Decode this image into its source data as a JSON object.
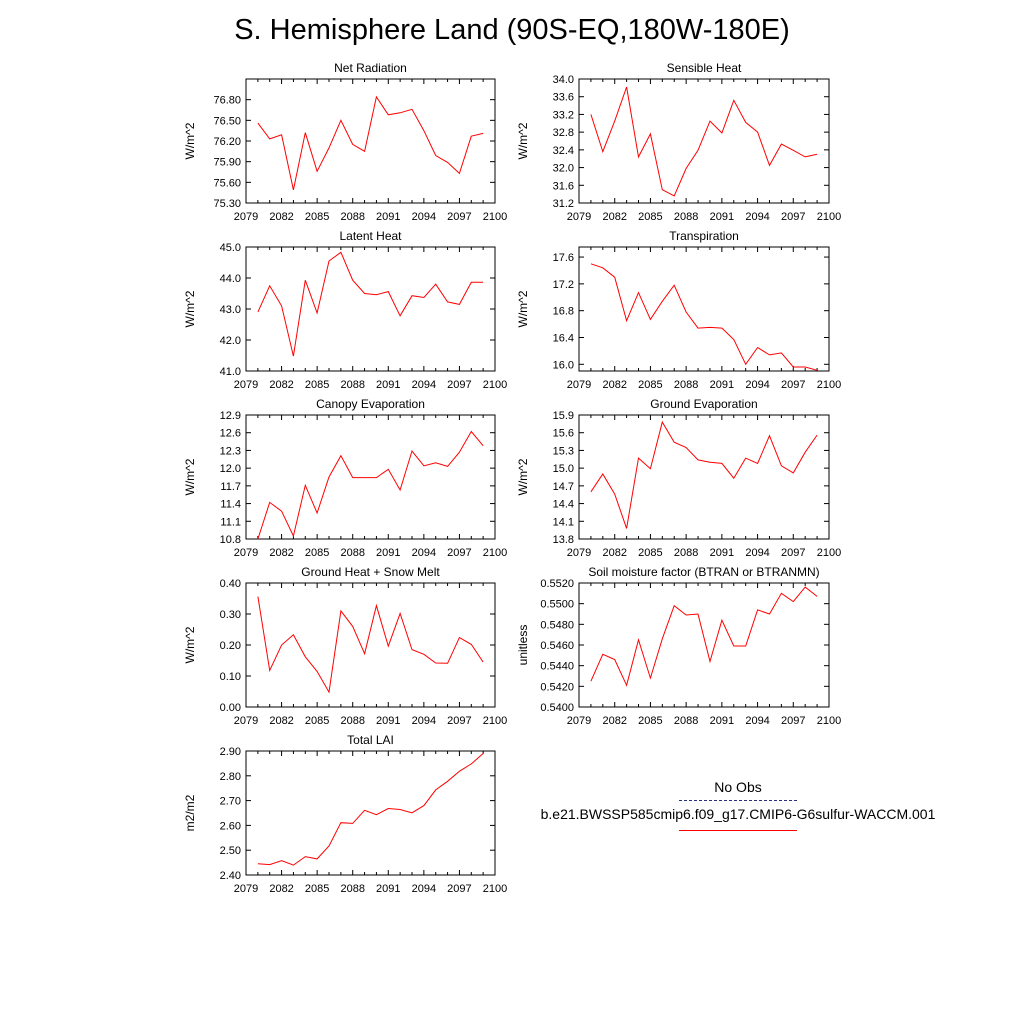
{
  "title": "S. Hemisphere Land (90S-EQ,180W-180E)",
  "legend": {
    "obs_label": "No Obs",
    "series_label": "b.e21.BWSSP585cmip6.f09_g17.CMIP6-G6sulfur-WACCM.001",
    "obs_color": "#2a2f7a",
    "series_color": "#ff0000"
  },
  "chart_data": [
    {
      "type": "line",
      "title": "Net Radiation",
      "ylabel": "W/m^2",
      "xlim": [
        2079,
        2100
      ],
      "xticks": [
        "2079",
        "2082",
        "2085",
        "2088",
        "2091",
        "2094",
        "2097",
        "2100"
      ],
      "ylim": [
        75.3,
        77.1
      ],
      "yticks": [
        "75.30",
        "75.60",
        "75.90",
        "76.20",
        "76.50",
        "76.80"
      ],
      "x": [
        2080,
        2081,
        2082,
        2083,
        2084,
        2085,
        2086,
        2087,
        2088,
        2089,
        2090,
        2091,
        2092,
        2093,
        2094,
        2095,
        2096,
        2097,
        2098,
        2099
      ],
      "series": [
        {
          "values": [
            76.46,
            76.23,
            76.29,
            75.49,
            76.32,
            75.76,
            76.1,
            76.5,
            76.15,
            76.05,
            76.84,
            76.58,
            76.61,
            76.66,
            76.35,
            75.99,
            75.89,
            75.73,
            76.27,
            76.31
          ]
        }
      ]
    },
    {
      "type": "line",
      "title": "Sensible Heat",
      "ylabel": "W/m^2",
      "xlim": [
        2079,
        2100
      ],
      "xticks": [
        "2079",
        "2082",
        "2085",
        "2088",
        "2091",
        "2094",
        "2097",
        "2100"
      ],
      "ylim": [
        31.2,
        34.0
      ],
      "yticks": [
        "31.2",
        "31.6",
        "32.0",
        "32.4",
        "32.8",
        "33.2",
        "33.6",
        "34.0"
      ],
      "x": [
        2080,
        2081,
        2082,
        2083,
        2084,
        2085,
        2086,
        2087,
        2088,
        2089,
        2090,
        2091,
        2092,
        2093,
        2094,
        2095,
        2096,
        2097,
        2098,
        2099
      ],
      "series": [
        {
          "values": [
            33.2,
            32.36,
            33.05,
            33.82,
            32.24,
            32.76,
            31.5,
            31.36,
            31.98,
            32.39,
            33.05,
            32.78,
            33.52,
            33.02,
            32.8,
            32.05,
            32.53,
            32.39,
            32.24,
            32.3
          ]
        }
      ]
    },
    {
      "type": "line",
      "title": "Latent Heat",
      "ylabel": "W/m^2",
      "xlim": [
        2079,
        2100
      ],
      "xticks": [
        "2079",
        "2082",
        "2085",
        "2088",
        "2091",
        "2094",
        "2097",
        "2100"
      ],
      "ylim": [
        41.0,
        45.0
      ],
      "yticks": [
        "41.0",
        "42.0",
        "43.0",
        "44.0",
        "45.0"
      ],
      "x": [
        2080,
        2081,
        2082,
        2083,
        2084,
        2085,
        2086,
        2087,
        2088,
        2089,
        2090,
        2091,
        2092,
        2093,
        2094,
        2095,
        2096,
        2097,
        2098,
        2099
      ],
      "series": [
        {
          "values": [
            42.9,
            43.75,
            43.1,
            41.48,
            43.93,
            42.87,
            44.55,
            44.83,
            43.93,
            43.5,
            43.46,
            43.56,
            42.78,
            43.43,
            43.37,
            43.8,
            43.23,
            43.15,
            43.86,
            43.86
          ]
        }
      ]
    },
    {
      "type": "line",
      "title": "Transpiration",
      "ylabel": "W/m^2",
      "xlim": [
        2079,
        2100
      ],
      "xticks": [
        "2079",
        "2082",
        "2085",
        "2088",
        "2091",
        "2094",
        "2097",
        "2100"
      ],
      "ylim": [
        15.9,
        17.75
      ],
      "yticks": [
        "16.0",
        "16.4",
        "16.8",
        "17.2",
        "17.6"
      ],
      "x": [
        2080,
        2081,
        2082,
        2083,
        2084,
        2085,
        2086,
        2087,
        2088,
        2089,
        2090,
        2091,
        2092,
        2093,
        2094,
        2095,
        2096,
        2097,
        2098,
        2099
      ],
      "series": [
        {
          "values": [
            17.5,
            17.44,
            17.3,
            16.65,
            17.07,
            16.67,
            16.94,
            17.18,
            16.78,
            16.54,
            16.55,
            16.54,
            16.37,
            16.0,
            16.25,
            16.14,
            16.17,
            15.96,
            15.96,
            15.91
          ]
        }
      ]
    },
    {
      "type": "line",
      "title": "Canopy Evaporation",
      "ylabel": "W/m^2",
      "xlim": [
        2079,
        2100
      ],
      "xticks": [
        "2079",
        "2082",
        "2085",
        "2088",
        "2091",
        "2094",
        "2097",
        "2100"
      ],
      "ylim": [
        10.8,
        12.9
      ],
      "yticks": [
        "10.8",
        "11.1",
        "11.4",
        "11.7",
        "12.0",
        "12.3",
        "12.6",
        "12.9"
      ],
      "x": [
        2080,
        2081,
        2082,
        2083,
        2084,
        2085,
        2086,
        2087,
        2088,
        2089,
        2090,
        2091,
        2092,
        2093,
        2094,
        2095,
        2096,
        2097,
        2098,
        2099
      ],
      "series": [
        {
          "values": [
            10.8,
            11.42,
            11.27,
            10.85,
            11.71,
            11.24,
            11.85,
            12.21,
            11.84,
            11.84,
            11.84,
            11.98,
            11.63,
            12.29,
            12.04,
            12.09,
            12.03,
            12.27,
            12.62,
            12.38
          ]
        }
      ]
    },
    {
      "type": "line",
      "title": "Ground Evaporation",
      "ylabel": "W/m^2",
      "xlim": [
        2079,
        2100
      ],
      "xticks": [
        "2079",
        "2082",
        "2085",
        "2088",
        "2091",
        "2094",
        "2097",
        "2100"
      ],
      "ylim": [
        13.8,
        15.9
      ],
      "yticks": [
        "13.8",
        "14.1",
        "14.4",
        "14.7",
        "15.0",
        "15.3",
        "15.6",
        "15.9"
      ],
      "x": [
        2080,
        2081,
        2082,
        2083,
        2084,
        2085,
        2086,
        2087,
        2088,
        2089,
        2090,
        2091,
        2092,
        2093,
        2094,
        2095,
        2096,
        2097,
        2098,
        2099
      ],
      "series": [
        {
          "values": [
            14.6,
            14.9,
            14.56,
            13.98,
            15.17,
            14.99,
            15.78,
            15.44,
            15.35,
            15.14,
            15.1,
            15.08,
            14.83,
            15.17,
            15.08,
            15.55,
            15.04,
            14.92,
            15.27,
            15.56
          ]
        }
      ]
    },
    {
      "type": "line",
      "title": "Ground Heat + Snow Melt",
      "ylabel": "W/m^2",
      "xlim": [
        2079,
        2100
      ],
      "xticks": [
        "2079",
        "2082",
        "2085",
        "2088",
        "2091",
        "2094",
        "2097",
        "2100"
      ],
      "ylim": [
        0.0,
        0.4
      ],
      "yticks": [
        "0.00",
        "0.10",
        "0.20",
        "0.30",
        "0.40"
      ],
      "x": [
        2080,
        2081,
        2082,
        2083,
        2084,
        2085,
        2086,
        2087,
        2088,
        2089,
        2090,
        2091,
        2092,
        2093,
        2094,
        2095,
        2096,
        2097,
        2098,
        2099
      ],
      "series": [
        {
          "values": [
            0.356,
            0.118,
            0.2,
            0.233,
            0.162,
            0.115,
            0.048,
            0.31,
            0.26,
            0.172,
            0.327,
            0.196,
            0.302,
            0.185,
            0.17,
            0.142,
            0.141,
            0.224,
            0.202,
            0.145
          ]
        }
      ]
    },
    {
      "type": "line",
      "title": "Soil moisture factor (BTRAN or BTRANMN)",
      "ylabel": "unitless",
      "xlim": [
        2079,
        2100
      ],
      "xticks": [
        "2079",
        "2082",
        "2085",
        "2088",
        "2091",
        "2094",
        "2097",
        "2100"
      ],
      "ylim": [
        0.54,
        0.552
      ],
      "yticks": [
        "0.5400",
        "0.5420",
        "0.5440",
        "0.5460",
        "0.5480",
        "0.5500",
        "0.5520"
      ],
      "x": [
        2080,
        2081,
        2082,
        2083,
        2084,
        2085,
        2086,
        2087,
        2088,
        2089,
        2090,
        2091,
        2092,
        2093,
        2094,
        2095,
        2096,
        2097,
        2098,
        2099
      ],
      "series": [
        {
          "values": [
            0.5425,
            0.5451,
            0.5446,
            0.5421,
            0.5465,
            0.5428,
            0.5466,
            0.5498,
            0.5489,
            0.549,
            0.5444,
            0.5484,
            0.5459,
            0.5459,
            0.5494,
            0.549,
            0.551,
            0.5502,
            0.5516,
            0.5507
          ]
        }
      ]
    },
    {
      "type": "line",
      "title": "Total LAI",
      "ylabel": "m2/m2",
      "xlim": [
        2079,
        2100
      ],
      "xticks": [
        "2079",
        "2082",
        "2085",
        "2088",
        "2091",
        "2094",
        "2097",
        "2100"
      ],
      "ylim": [
        2.4,
        2.9
      ],
      "yticks": [
        "2.40",
        "2.50",
        "2.60",
        "2.70",
        "2.80",
        "2.90"
      ],
      "x": [
        2080,
        2081,
        2082,
        2083,
        2084,
        2085,
        2086,
        2087,
        2088,
        2089,
        2090,
        2091,
        2092,
        2093,
        2094,
        2095,
        2096,
        2097,
        2098,
        2099
      ],
      "series": [
        {
          "values": [
            2.445,
            2.442,
            2.458,
            2.44,
            2.474,
            2.465,
            2.517,
            2.611,
            2.608,
            2.661,
            2.643,
            2.668,
            2.664,
            2.651,
            2.68,
            2.743,
            2.778,
            2.818,
            2.848,
            2.89
          ]
        }
      ]
    }
  ]
}
